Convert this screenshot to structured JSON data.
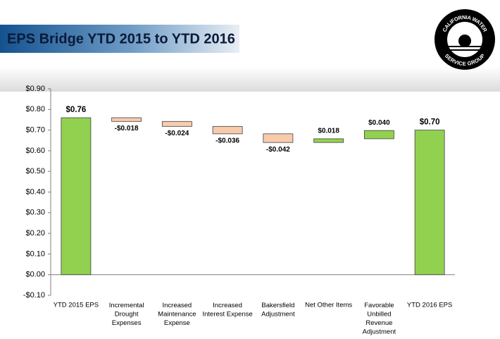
{
  "header": {
    "title": "EPS Bridge YTD 2015 to YTD 2016",
    "logo_top": "CALIFORNIA WATER",
    "logo_bottom": "SERVICE GROUP"
  },
  "chart_data": {
    "type": "waterfall",
    "categories": [
      "YTD 2015 EPS",
      "Incremental\nDrought\nExpenses",
      "Increased\nMaintenance\nExpense",
      "Increased\nInterest Expense",
      "Bakersfield\nAdjustment",
      "Net Other Items",
      "Favorable\nUnbilled\nRevenue\nAdjustment",
      "YTD 2016 EPS"
    ],
    "values": [
      0.76,
      -0.018,
      -0.024,
      -0.036,
      -0.042,
      0.018,
      0.04,
      0.7
    ],
    "value_labels": [
      "$0.76",
      "-$0.018",
      "-$0.024",
      "-$0.036",
      "-$0.042",
      "$0.018",
      "$0.040",
      "$0.70"
    ],
    "measures": [
      "total",
      "relative",
      "relative",
      "relative",
      "relative",
      "relative",
      "relative",
      "total"
    ],
    "colors": {
      "total": "#92d050",
      "increase": "#92d050",
      "decrease": "#f8cbad"
    },
    "ylim": [
      -0.1,
      0.9
    ],
    "yticks": [
      {
        "value": -0.1,
        "label": "-$0.10"
      },
      {
        "value": 0,
        "label": "$0.00"
      },
      {
        "value": 0.1,
        "label": "$0.10"
      },
      {
        "value": 0.2,
        "label": "$0.20"
      },
      {
        "value": 0.3,
        "label": "$0.30"
      },
      {
        "value": 0.4,
        "label": "$0.40"
      },
      {
        "value": 0.5,
        "label": "$0.50"
      },
      {
        "value": 0.6,
        "label": "$0.60"
      },
      {
        "value": 0.7,
        "label": "$0.70"
      },
      {
        "value": 0.8,
        "label": "$0.80"
      },
      {
        "value": 0.9,
        "label": "$0.90"
      }
    ]
  }
}
